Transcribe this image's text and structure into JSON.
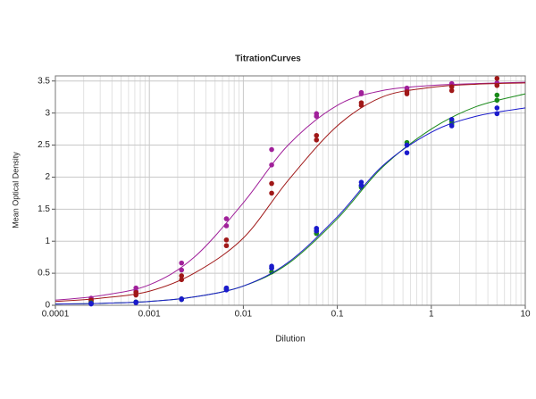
{
  "chart_data": {
    "type": "scatter",
    "title": "TitrationCurves",
    "x_label": "Dilution",
    "y_label": "Mean Optical Density",
    "xscale": "log",
    "xlim": [
      0.0001,
      10
    ],
    "xticks": [
      0.0001,
      0.001,
      0.01,
      0.1,
      1,
      10
    ],
    "xminorticks": [
      0.0002,
      0.0003,
      0.0004,
      0.0005,
      0.0006,
      0.0007,
      0.0008,
      0.0009,
      0.002,
      0.003,
      0.004,
      0.005,
      0.006,
      0.007,
      0.008,
      0.009,
      0.02,
      0.03,
      0.04,
      0.05,
      0.06,
      0.07,
      0.08,
      0.09,
      0.2,
      0.3,
      0.4,
      0.5,
      0.6,
      0.7,
      0.8,
      0.9,
      2,
      3,
      4,
      5,
      6,
      7,
      8,
      9
    ],
    "ylim": [
      0,
      3.58
    ],
    "yticks": [
      0,
      0.5,
      1,
      1.5,
      2,
      2.5,
      3,
      3.5
    ],
    "grid": true,
    "series": [
      {
        "color": "#a0209a",
        "x": [
          0.00024,
          0.00024,
          0.00072,
          0.00072,
          0.0022,
          0.0022,
          0.0066,
          0.0066,
          0.02,
          0.02,
          0.06,
          0.06,
          0.18,
          0.18,
          0.55,
          0.55,
          1.65,
          1.65,
          5,
          5
        ],
        "values": [
          0.11,
          0.08,
          0.27,
          0.22,
          0.66,
          0.55,
          1.35,
          1.24,
          2.43,
          2.19,
          2.99,
          2.95,
          3.32,
          3.3,
          3.39,
          3.37,
          3.46,
          3.42,
          3.47,
          3.44
        ],
        "curve": {
          "x": [
            0.0001,
            0.0003,
            0.001,
            0.003,
            0.01,
            0.03,
            0.1,
            0.3,
            1,
            3,
            10
          ],
          "values": [
            0.08,
            0.15,
            0.32,
            0.75,
            1.6,
            2.5,
            3.12,
            3.35,
            3.43,
            3.46,
            3.48
          ]
        }
      },
      {
        "color": "#a01818",
        "x": [
          0.00024,
          0.00024,
          0.00072,
          0.00072,
          0.0022,
          0.0022,
          0.0066,
          0.0066,
          0.02,
          0.02,
          0.06,
          0.06,
          0.18,
          0.18,
          0.55,
          0.55,
          1.65,
          1.65,
          5,
          5
        ],
        "values": [
          0.08,
          0.06,
          0.2,
          0.16,
          0.46,
          0.4,
          1.02,
          0.93,
          1.9,
          1.75,
          2.65,
          2.58,
          3.16,
          3.12,
          3.33,
          3.3,
          3.41,
          3.35,
          3.54,
          3.43
        ],
        "curve": {
          "x": [
            0.0001,
            0.0003,
            0.001,
            0.003,
            0.01,
            0.03,
            0.1,
            0.3,
            1,
            3,
            10
          ],
          "values": [
            0.06,
            0.11,
            0.22,
            0.5,
            1.05,
            1.95,
            2.8,
            3.25,
            3.4,
            3.45,
            3.47
          ]
        }
      },
      {
        "color": "#1a8a1a",
        "x": [
          0.00024,
          0.00024,
          0.00072,
          0.00072,
          0.0022,
          0.0022,
          0.0066,
          0.0066,
          0.02,
          0.02,
          0.06,
          0.06,
          0.18,
          0.18,
          0.55,
          0.55,
          1.65,
          1.65,
          5,
          5
        ],
        "values": [
          0.04,
          0.03,
          0.05,
          0.05,
          0.1,
          0.09,
          0.26,
          0.25,
          0.58,
          0.52,
          1.16,
          1.12,
          1.87,
          1.84,
          2.54,
          2.5,
          2.87,
          2.83,
          3.28,
          3.2
        ],
        "curve": {
          "x": [
            0.0001,
            0.0003,
            0.001,
            0.003,
            0.01,
            0.03,
            0.1,
            0.3,
            1,
            3,
            10
          ],
          "values": [
            0.02,
            0.03,
            0.06,
            0.13,
            0.3,
            0.65,
            1.35,
            2.15,
            2.75,
            3.1,
            3.3
          ]
        }
      },
      {
        "color": "#1a1acc",
        "x": [
          0.00024,
          0.00024,
          0.00072,
          0.00072,
          0.0022,
          0.0022,
          0.0066,
          0.0066,
          0.02,
          0.02,
          0.06,
          0.06,
          0.18,
          0.18,
          0.55,
          0.55,
          1.65,
          1.65,
          5,
          5
        ],
        "values": [
          0.03,
          0.02,
          0.05,
          0.04,
          0.1,
          0.09,
          0.27,
          0.24,
          0.61,
          0.58,
          1.2,
          1.16,
          1.92,
          1.87,
          2.5,
          2.38,
          2.9,
          2.8,
          3.08,
          2.99
        ],
        "curve": {
          "x": [
            0.0001,
            0.0003,
            0.001,
            0.003,
            0.01,
            0.03,
            0.1,
            0.3,
            1,
            3,
            10
          ],
          "values": [
            0.02,
            0.03,
            0.06,
            0.13,
            0.3,
            0.67,
            1.38,
            2.17,
            2.7,
            2.95,
            3.08
          ]
        }
      }
    ]
  }
}
